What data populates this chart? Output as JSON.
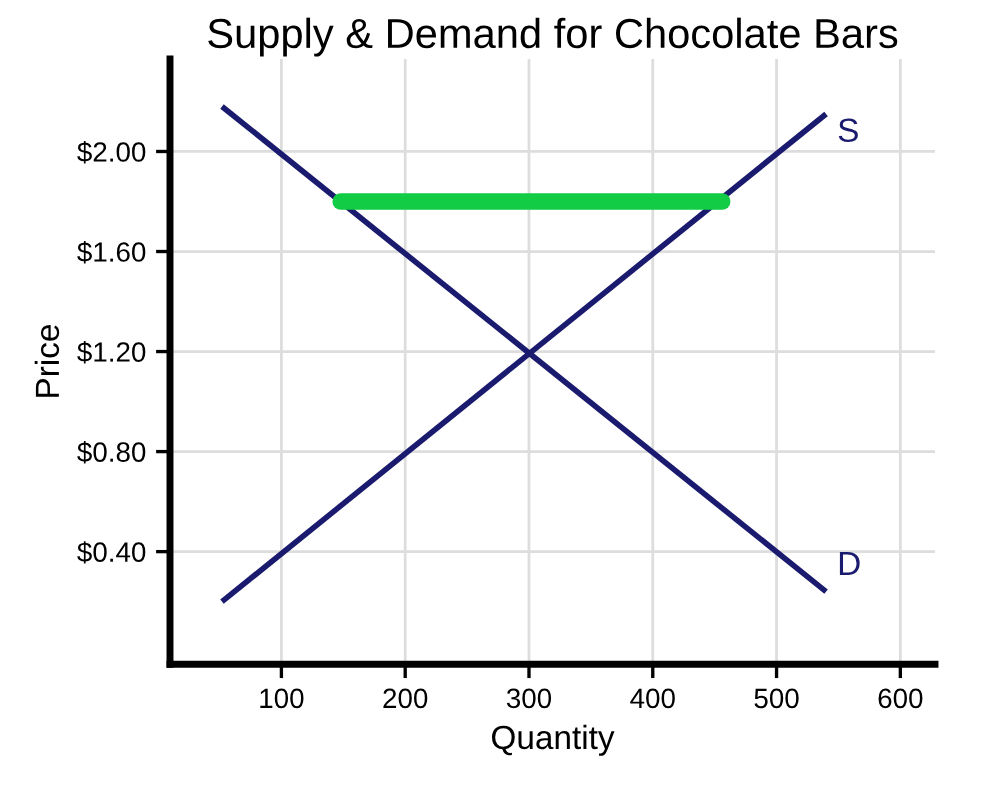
{
  "chart_data": {
    "type": "line",
    "title": "Supply & Demand for Chocolate Bars",
    "xlabel": "Quantity",
    "ylabel": "Price",
    "xlim": [
      10,
      628
    ],
    "ylim": [
      -0.05,
      2.37
    ],
    "xticks": [
      100,
      200,
      300,
      400,
      500,
      600
    ],
    "yticks": [
      {
        "value": 0.4,
        "label": "$0.40"
      },
      {
        "value": 0.8,
        "label": "$0.80"
      },
      {
        "value": 1.2,
        "label": "$1.20"
      },
      {
        "value": 1.6,
        "label": "$1.60"
      },
      {
        "value": 2.0,
        "label": "$2.00"
      }
    ],
    "grid": true,
    "legend": false,
    "marker": "none",
    "line_style": "solid",
    "series": [
      {
        "name": "S",
        "color": "#1a1a6e",
        "x": [
          52,
          540
        ],
        "values": [
          0.2,
          2.15
        ]
      },
      {
        "name": "D",
        "color": "#1a1a6e",
        "x": [
          52,
          540
        ],
        "values": [
          2.18,
          0.24
        ]
      },
      {
        "color": "#11cc44",
        "x": [
          148,
          456
        ],
        "values": [
          1.8,
          1.8
        ]
      }
    ]
  }
}
